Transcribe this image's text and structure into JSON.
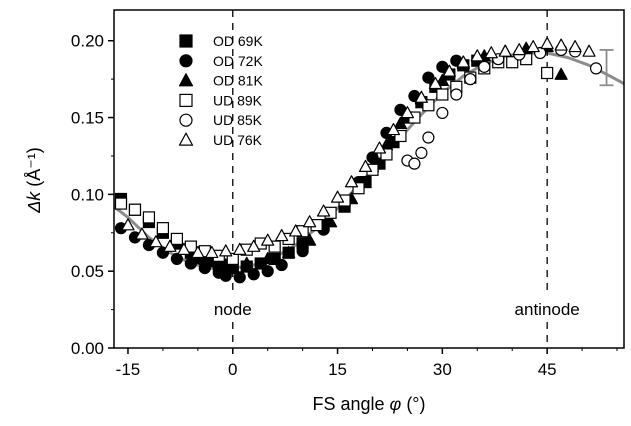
{
  "chart_data": {
    "type": "scatter",
    "xlabel_prefix": "FS angle",
    "xlabel_symbol": "φ",
    "xlabel_unit": "(°)",
    "ylabel_symbol": "Δk",
    "ylabel_unit": "(Å⁻¹)",
    "xlim": [
      -17,
      56
    ],
    "ylim": [
      0,
      0.22
    ],
    "xticks": [
      -15,
      0,
      15,
      30,
      45
    ],
    "xtick_labels": [
      "-15",
      "0",
      "15",
      "30",
      "45"
    ],
    "yticks": [
      0.0,
      0.05,
      0.1,
      0.15,
      0.2
    ],
    "ytick_labels": [
      "0.00",
      "0.05",
      "0.10",
      "0.15",
      "0.20"
    ],
    "legend_position": "top-left",
    "annotations": [
      {
        "text": "node",
        "x": 0
      },
      {
        "text": "antinode",
        "x": 45
      }
    ],
    "fit_curve": {
      "color": "#8c8c8c",
      "x": [
        -17,
        -15,
        -12,
        -9,
        -6,
        -3,
        0,
        3,
        6,
        9,
        12,
        15,
        18,
        21,
        24,
        27,
        30,
        33,
        36,
        39,
        42,
        45,
        48,
        51,
        54,
        56
      ],
      "y": [
        0.092,
        0.085,
        0.072,
        0.062,
        0.055,
        0.052,
        0.052,
        0.054,
        0.059,
        0.067,
        0.078,
        0.091,
        0.106,
        0.121,
        0.137,
        0.152,
        0.166,
        0.177,
        0.185,
        0.19,
        0.192,
        0.192,
        0.189,
        0.184,
        0.177,
        0.172
      ]
    },
    "error_bar": {
      "x": 53.5,
      "y_low": 0.171,
      "y_high": 0.194,
      "color": "#8c8c8c"
    },
    "series": [
      {
        "name": "OD 69K",
        "marker": "square",
        "filled": true,
        "points": [
          [
            -16,
            0.097
          ],
          [
            -14,
            0.09
          ],
          [
            -12,
            0.082
          ],
          [
            -10,
            0.075
          ],
          [
            -8,
            0.068
          ],
          [
            -6,
            0.062
          ],
          [
            -4,
            0.058
          ],
          [
            -2,
            0.054
          ],
          [
            0,
            0.052
          ],
          [
            2,
            0.053
          ],
          [
            4,
            0.055
          ],
          [
            6,
            0.058
          ],
          [
            8,
            0.062
          ],
          [
            10,
            0.068
          ],
          [
            13,
            0.08
          ],
          [
            16,
            0.092
          ],
          [
            19,
            0.108
          ],
          [
            21,
            0.12
          ],
          [
            23,
            0.134
          ],
          [
            25,
            0.15
          ],
          [
            27,
            0.16
          ],
          [
            29,
            0.17
          ],
          [
            31,
            0.178
          ],
          [
            33,
            0.184
          ],
          [
            35,
            0.187
          ]
        ]
      },
      {
        "name": "OD 72K",
        "marker": "circle",
        "filled": true,
        "points": [
          [
            -16,
            0.078
          ],
          [
            -14,
            0.072
          ],
          [
            -12,
            0.067
          ],
          [
            -10,
            0.062
          ],
          [
            -8,
            0.058
          ],
          [
            -6,
            0.055
          ],
          [
            -4,
            0.052
          ],
          [
            -2,
            0.049
          ],
          [
            -1,
            0.047
          ],
          [
            1,
            0.046
          ],
          [
            3,
            0.048
          ],
          [
            5,
            0.05
          ],
          [
            7,
            0.054
          ],
          [
            10,
            0.063
          ],
          [
            13,
            0.077
          ],
          [
            16,
            0.093
          ],
          [
            18,
            0.108
          ],
          [
            20,
            0.124
          ],
          [
            22,
            0.14
          ],
          [
            24,
            0.155
          ],
          [
            26,
            0.164
          ],
          [
            28,
            0.176
          ],
          [
            30,
            0.183
          ],
          [
            32,
            0.187
          ]
        ]
      },
      {
        "name": "OD 81K",
        "marker": "triangle",
        "filled": true,
        "points": [
          [
            -5,
            0.058
          ],
          [
            -3,
            0.056
          ],
          [
            -1,
            0.054
          ],
          [
            2,
            0.055
          ],
          [
            5,
            0.058
          ],
          [
            8,
            0.062
          ],
          [
            11,
            0.07
          ],
          [
            14,
            0.082
          ],
          [
            17,
            0.097
          ],
          [
            20,
            0.118
          ],
          [
            22,
            0.132
          ],
          [
            24,
            0.146
          ],
          [
            27,
            0.162
          ],
          [
            30,
            0.174
          ],
          [
            33,
            0.185
          ],
          [
            36,
            0.19
          ],
          [
            39,
            0.193
          ],
          [
            42,
            0.195
          ],
          [
            45,
            0.196
          ],
          [
            47,
            0.178
          ]
        ]
      },
      {
        "name": "UD 89K",
        "marker": "square",
        "filled": false,
        "points": [
          [
            -16,
            0.094
          ],
          [
            -14,
            0.09
          ],
          [
            -12,
            0.085
          ],
          [
            -10,
            0.078
          ],
          [
            -8,
            0.071
          ],
          [
            -6,
            0.066
          ],
          [
            -4,
            0.063
          ],
          [
            -2,
            0.06
          ],
          [
            0,
            0.058
          ],
          [
            2,
            0.064
          ],
          [
            4,
            0.068
          ],
          [
            6,
            0.066
          ],
          [
            8,
            0.071
          ],
          [
            10,
            0.076
          ],
          [
            12,
            0.08
          ],
          [
            14,
            0.088
          ],
          [
            16,
            0.096
          ],
          [
            18,
            0.104
          ],
          [
            20,
            0.116
          ],
          [
            22,
            0.126
          ],
          [
            24,
            0.138
          ],
          [
            26,
            0.15
          ],
          [
            28,
            0.158
          ],
          [
            30,
            0.165
          ],
          [
            32,
            0.17
          ],
          [
            34,
            0.176
          ],
          [
            36,
            0.182
          ],
          [
            38,
            0.186
          ],
          [
            40,
            0.186
          ],
          [
            42,
            0.188
          ],
          [
            45,
            0.179
          ]
        ]
      },
      {
        "name": "UD 85K",
        "marker": "circle",
        "filled": false,
        "points": [
          [
            25,
            0.122
          ],
          [
            26,
            0.12
          ],
          [
            27,
            0.127
          ],
          [
            28,
            0.137
          ],
          [
            30,
            0.153
          ],
          [
            32,
            0.165
          ],
          [
            34,
            0.175
          ],
          [
            36,
            0.183
          ],
          [
            38,
            0.188
          ],
          [
            41,
            0.191
          ],
          [
            44,
            0.192
          ],
          [
            47,
            0.194
          ],
          [
            49,
            0.193
          ],
          [
            52,
            0.182
          ]
        ]
      },
      {
        "name": "UD 76K",
        "marker": "triangle",
        "filled": false,
        "points": [
          [
            -15,
            0.08
          ],
          [
            -13,
            0.074
          ],
          [
            -11,
            0.069
          ],
          [
            -9,
            0.066
          ],
          [
            -7,
            0.064
          ],
          [
            -5,
            0.062
          ],
          [
            -3,
            0.062
          ],
          [
            -1,
            0.063
          ],
          [
            1,
            0.064
          ],
          [
            3,
            0.066
          ],
          [
            5,
            0.07
          ],
          [
            7,
            0.073
          ],
          [
            9,
            0.076
          ],
          [
            11,
            0.082
          ],
          [
            13,
            0.089
          ],
          [
            15,
            0.098
          ],
          [
            17,
            0.108
          ],
          [
            19,
            0.118
          ],
          [
            21,
            0.13
          ],
          [
            23,
            0.142
          ],
          [
            25,
            0.153
          ],
          [
            27,
            0.163
          ],
          [
            29,
            0.172
          ],
          [
            31,
            0.18
          ],
          [
            33,
            0.186
          ],
          [
            35,
            0.19
          ],
          [
            37,
            0.192
          ],
          [
            39,
            0.193
          ],
          [
            41,
            0.194
          ],
          [
            43,
            0.196
          ],
          [
            45,
            0.198
          ],
          [
            47,
            0.197
          ],
          [
            49,
            0.196
          ],
          [
            51,
            0.193
          ]
        ]
      }
    ]
  }
}
